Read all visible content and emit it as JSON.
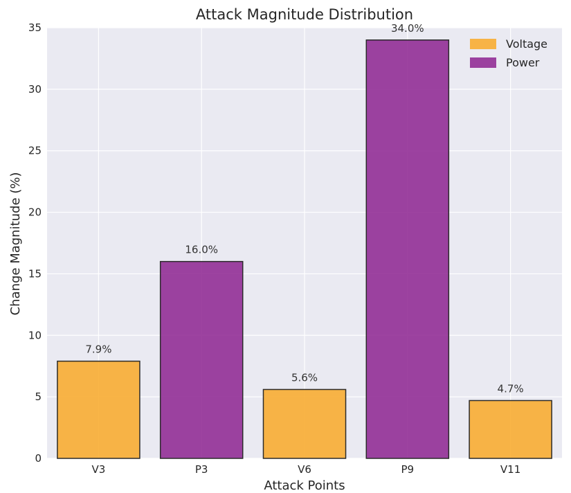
{
  "chart_data": {
    "type": "bar",
    "title": "Attack Magnitude Distribution",
    "xlabel": "Attack Points",
    "ylabel": "Change Magnitude (%)",
    "categories": [
      "V3",
      "P3",
      "V6",
      "P9",
      "V11"
    ],
    "values": [
      7.9,
      16.0,
      5.6,
      34.0,
      4.7
    ],
    "bar_labels": [
      "7.9%",
      "16.0%",
      "5.6%",
      "34.0%",
      "4.7%"
    ],
    "bar_series": [
      "Voltage",
      "Power",
      "Voltage",
      "Power",
      "Voltage"
    ],
    "series": [
      {
        "name": "Voltage",
        "color": "#f8ad33"
      },
      {
        "name": "Power",
        "color": "#922f96"
      }
    ],
    "ylim": [
      0,
      35
    ],
    "yticks": [
      0,
      5,
      10,
      15,
      20,
      25,
      30,
      35
    ],
    "grid": true,
    "legend_position": "top-right",
    "plot_background": "#eaeaf2",
    "bar_edge_color": "#2b2b2b"
  }
}
